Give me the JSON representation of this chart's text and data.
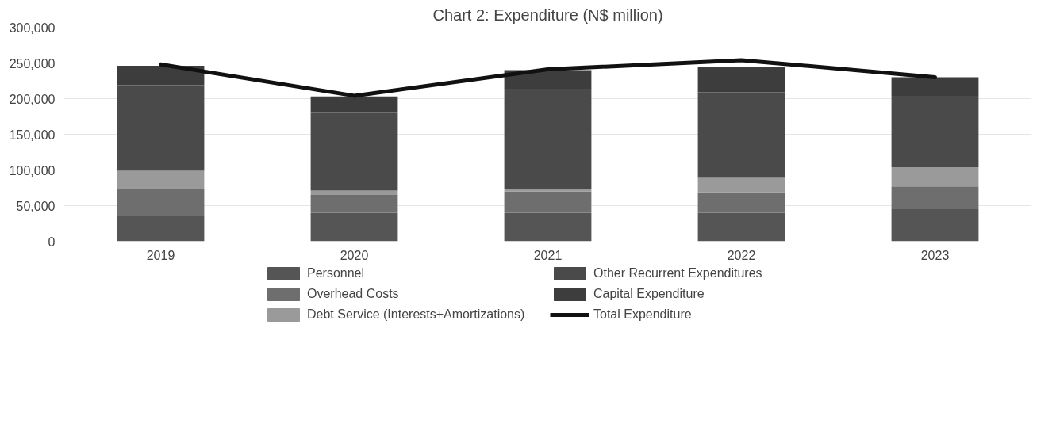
{
  "chart_data": {
    "type": "bar",
    "title": "Chart 2: Expenditure (N$ million)",
    "stacked": true,
    "categories": [
      "2019",
      "2020",
      "2021",
      "2022",
      "2023"
    ],
    "series": [
      {
        "name": "Personnel",
        "color": "#555555",
        "values": [
          35000,
          40000,
          40000,
          40000,
          45000
        ]
      },
      {
        "name": "Overhead Costs",
        "color": "#6e6e6e",
        "values": [
          38000,
          25000,
          30000,
          29000,
          32000
        ]
      },
      {
        "name": "Debt Service (Interests+Amortizations)",
        "color": "#9a9a9a",
        "values": [
          26000,
          6000,
          4000,
          20000,
          27000
        ]
      },
      {
        "name": "Other Recurrent Expenditures",
        "color": "#4a4a4a",
        "values": [
          120000,
          110000,
          140000,
          120000,
          100000
        ]
      },
      {
        "name": "Capital Expenditure",
        "color": "#3d3d3d",
        "values": [
          27000,
          22000,
          26000,
          36000,
          26000
        ]
      },
      {
        "name": "Total Expenditure",
        "type": "line",
        "color": "#111111",
        "values": [
          248000,
          204000,
          241000,
          254000,
          230000
        ]
      }
    ],
    "ylim": [
      0,
      300000
    ],
    "yticks": [
      {
        "value": 0,
        "label": "0"
      },
      {
        "value": 50000,
        "label": "50,000"
      },
      {
        "value": 100000,
        "label": "100,000"
      },
      {
        "value": 150000,
        "label": "150,000"
      },
      {
        "value": 200000,
        "label": "200,000"
      },
      {
        "value": 250000,
        "label": "250,000"
      },
      {
        "value": 300000,
        "label": "300,000"
      }
    ],
    "grid": "y",
    "legend": "bottom"
  }
}
